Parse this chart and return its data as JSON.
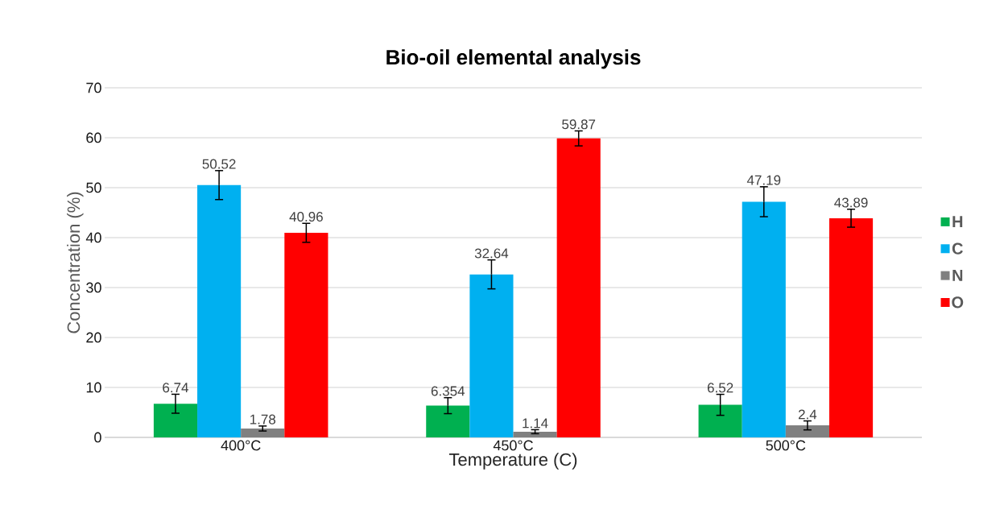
{
  "chart_data": {
    "type": "bar",
    "title": "Bio-oil elemental analysis",
    "xlabel": "Temperature (C)",
    "ylabel": "Concentration (%)",
    "categories": [
      "400°C",
      "450°C",
      "500°C"
    ],
    "series": [
      {
        "name": "H",
        "color": "#00b050",
        "values": [
          6.74,
          6.354,
          6.52
        ],
        "errors": [
          1.9,
          1.6,
          2.1
        ]
      },
      {
        "name": "C",
        "color": "#00b0f0",
        "values": [
          50.52,
          32.64,
          47.19
        ],
        "errors": [
          2.9,
          2.9,
          3.0
        ]
      },
      {
        "name": "N",
        "color": "#808080",
        "values": [
          1.78,
          1.14,
          2.4
        ],
        "errors": [
          0.5,
          0.4,
          0.9
        ]
      },
      {
        "name": "O",
        "color": "#ff0000",
        "values": [
          40.96,
          59.87,
          43.89
        ],
        "errors": [
          1.9,
          1.5,
          1.8
        ]
      }
    ],
    "ylim": [
      0,
      70
    ],
    "yticks": [
      0,
      10,
      20,
      30,
      40,
      50,
      60,
      70
    ],
    "grid": "y",
    "legend": "right",
    "data_labels": true
  }
}
